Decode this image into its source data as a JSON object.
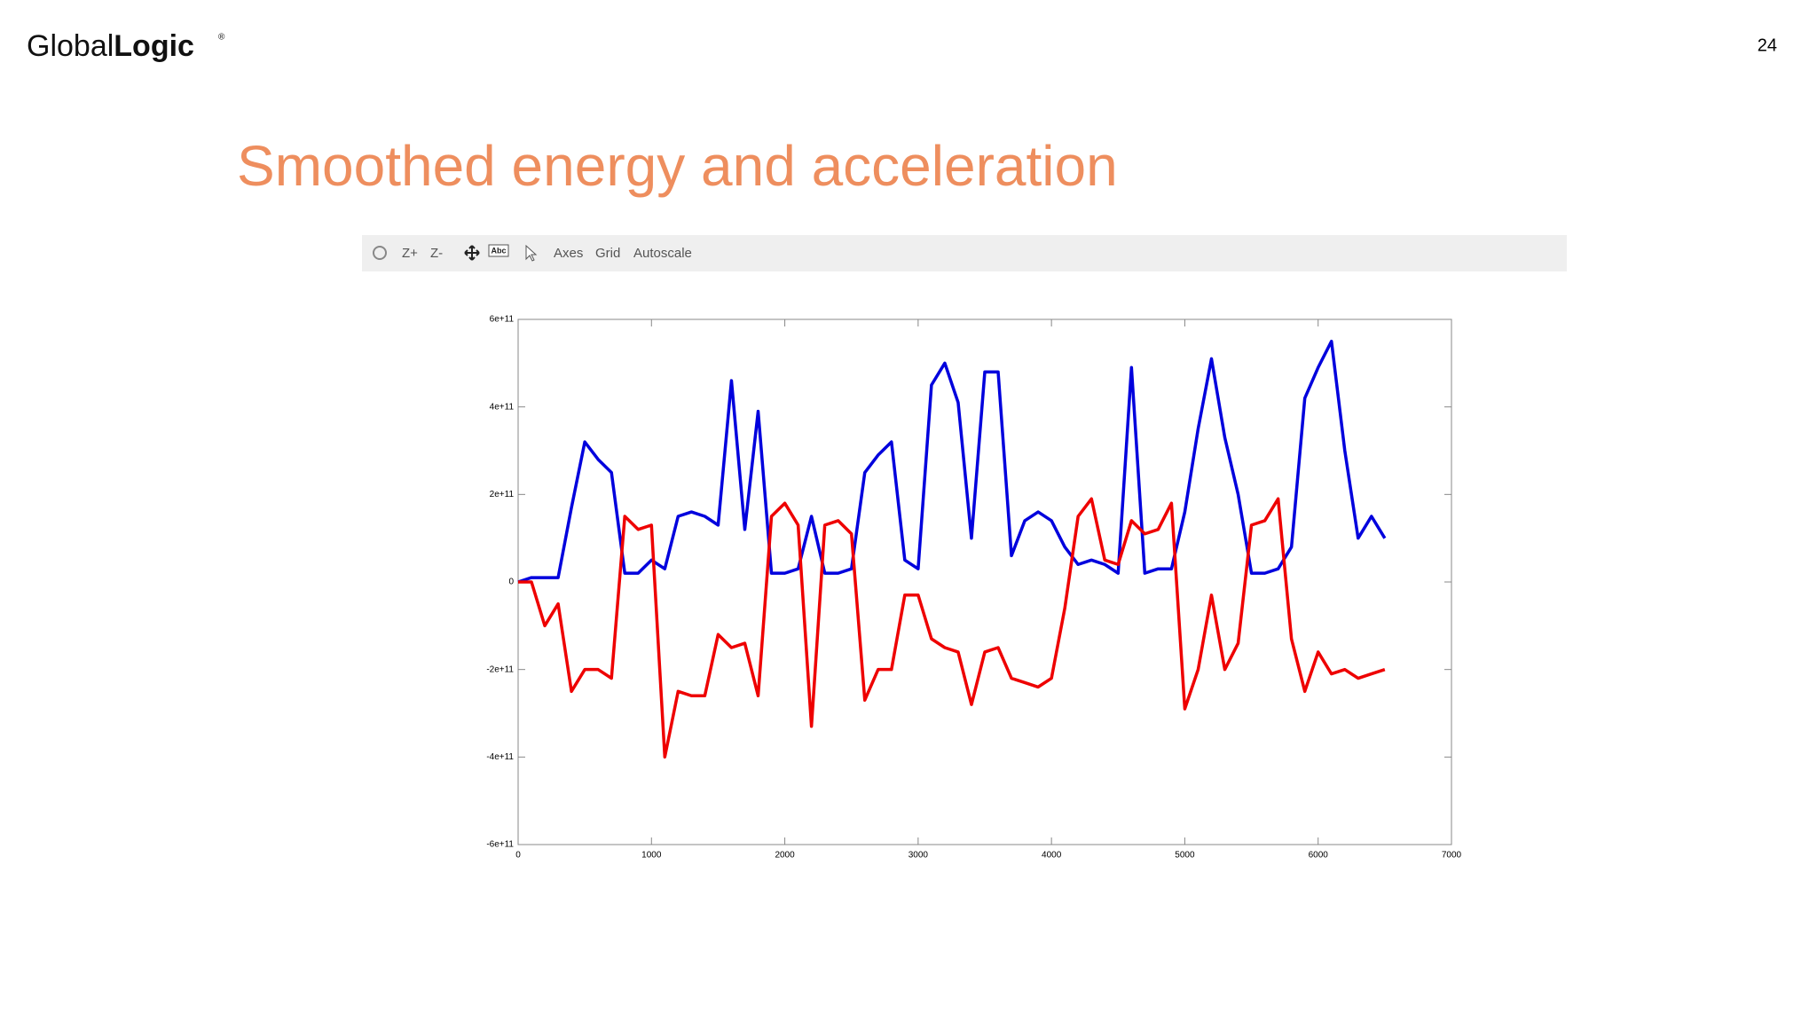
{
  "slide": {
    "logo": [
      "Global",
      "Logic"
    ],
    "logo_mark": "®",
    "page_number": "24",
    "title": "Smoothed energy and acceleration",
    "toolbar": [
      "Z+",
      "Z-",
      "Abc",
      "Axes",
      "Grid",
      "Autoscale"
    ]
  },
  "chart_data": {
    "type": "line",
    "x": [
      0,
      100,
      200,
      300,
      400,
      500,
      600,
      700,
      800,
      900,
      1000,
      1100,
      1200,
      1300,
      1400,
      1500,
      1600,
      1700,
      1800,
      1900,
      2000,
      2100,
      2200,
      2300,
      2400,
      2500,
      2600,
      2700,
      2800,
      2900,
      3000,
      3100,
      3200,
      3300,
      3400,
      3500,
      3600,
      3700,
      3800,
      3900,
      4000,
      4100,
      4200,
      4300,
      4400,
      4500,
      4600,
      4700,
      4800,
      4900,
      5000,
      5100,
      5200,
      5300,
      5400,
      5500,
      5600,
      5700,
      5800,
      5900,
      6000,
      6100,
      6200,
      6300,
      6400,
      6500
    ],
    "series": [
      {
        "color": "#0000dd",
        "values": [
          0,
          10000000000.0,
          10000000000.0,
          10000000000.0,
          170000000000.0,
          320000000000.0,
          280000000000.0,
          250000000000.0,
          20000000000.0,
          20000000000.0,
          50000000000.0,
          30000000000.0,
          150000000000.0,
          160000000000.0,
          150000000000.0,
          130000000000.0,
          460000000000.0,
          120000000000.0,
          390000000000.0,
          20000000000.0,
          20000000000.0,
          30000000000.0,
          150000000000.0,
          20000000000.0,
          20000000000.0,
          30000000000.0,
          250000000000.0,
          290000000000.0,
          320000000000.0,
          50000000000.0,
          30000000000.0,
          450000000000.0,
          500000000000.0,
          410000000000.0,
          100000000000.0,
          480000000000.0,
          480000000000.0,
          60000000000.0,
          140000000000.0,
          160000000000.0,
          140000000000.0,
          80000000000.0,
          40000000000.0,
          50000000000.0,
          40000000000.0,
          20000000000.0,
          490000000000.0,
          20000000000.0,
          30000000000.0,
          30000000000.0,
          160000000000.0,
          350000000000.0,
          510000000000.0,
          330000000000.0,
          200000000000.0,
          20000000000.0,
          20000000000.0,
          30000000000.0,
          80000000000.0,
          420000000000.0,
          490000000000.0,
          550000000000.0,
          300000000000.0,
          100000000000.0,
          150000000000.0,
          100000000000.0
        ]
      },
      {
        "color": "#ee0000",
        "values": [
          0,
          0,
          -100000000000.0,
          -50000000000.0,
          -250000000000.0,
          -200000000000.0,
          -200000000000.0,
          -220000000000.0,
          150000000000.0,
          120000000000.0,
          130000000000.0,
          -400000000000.0,
          -250000000000.0,
          -260000000000.0,
          -260000000000.0,
          -120000000000.0,
          -150000000000.0,
          -140000000000.0,
          -260000000000.0,
          150000000000.0,
          180000000000.0,
          130000000000.0,
          -330000000000.0,
          130000000000.0,
          140000000000.0,
          110000000000.0,
          -270000000000.0,
          -200000000000.0,
          -200000000000.0,
          -30000000000.0,
          -30000000000.0,
          -130000000000.0,
          -150000000000.0,
          -160000000000.0,
          -280000000000.0,
          -160000000000.0,
          -150000000000.0,
          -220000000000.0,
          -230000000000.0,
          -240000000000.0,
          -220000000000.0,
          -60000000000.0,
          150000000000.0,
          190000000000.0,
          50000000000.0,
          40000000000.0,
          140000000000.0,
          110000000000.0,
          120000000000.0,
          180000000000.0,
          -290000000000.0,
          -200000000000.0,
          -30000000000.0,
          -200000000000.0,
          -140000000000.0,
          130000000000.0,
          140000000000.0,
          190000000000.0,
          -130000000000.0,
          -250000000000.0,
          -160000000000.0,
          -210000000000.0,
          -200000000000.0,
          -220000000000.0,
          -210000000000.0,
          -200000000000.0
        ]
      }
    ],
    "xlim": [
      0,
      7000
    ],
    "xticks": [
      0,
      1000,
      2000,
      3000,
      4000,
      5000,
      6000,
      7000
    ],
    "ylim": [
      -600000000000.0,
      600000000000.0
    ],
    "yticks": [
      {
        "value": -600000000000.0,
        "label": "-6e+11"
      },
      {
        "value": -400000000000.0,
        "label": "-4e+11"
      },
      {
        "value": -200000000000.0,
        "label": "-2e+11"
      },
      0,
      {
        "value": 200000000000.0,
        "label": "2e+11"
      },
      {
        "value": 400000000000.0,
        "label": "4e+11"
      },
      {
        "value": 600000000000.0,
        "label": "6e+11"
      }
    ],
    "grid": false
  }
}
